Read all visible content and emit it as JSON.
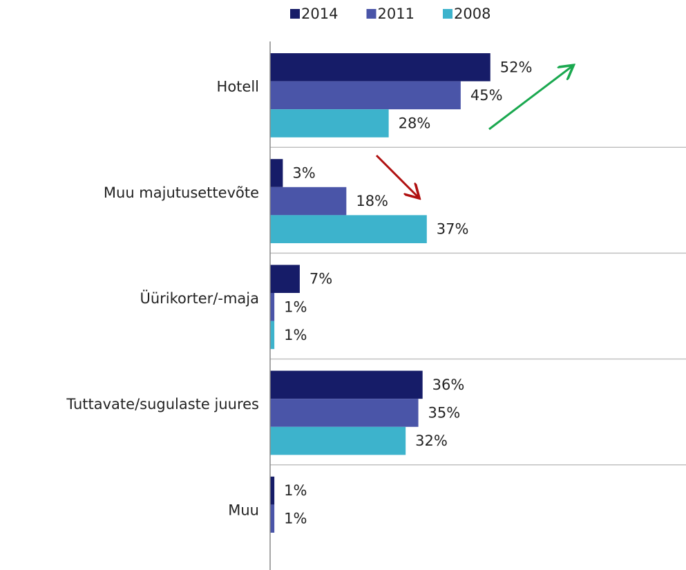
{
  "chart_data": {
    "type": "bar",
    "orientation": "horizontal",
    "categories": [
      "Hotell",
      "Muu majutusettevõte",
      "Üürikorter/-maja",
      "Tuttavate/sugulaste juures",
      "Muu"
    ],
    "series": [
      {
        "name": "2014",
        "color": "#161c68",
        "values": [
          52,
          3,
          7,
          36,
          1
        ],
        "value_labels": [
          "52%",
          "3%",
          "7%",
          "36%",
          "1%"
        ]
      },
      {
        "name": "2011",
        "color": "#4a55a8",
        "values": [
          45,
          18,
          1,
          35,
          1
        ],
        "value_labels": [
          "45%",
          "18%",
          "1%",
          "35%",
          "1%"
        ]
      },
      {
        "name": "2008",
        "color": "#3db3cc",
        "values": [
          28,
          37,
          1,
          32,
          null
        ],
        "value_labels": [
          "28%",
          "37%",
          "1%",
          "32%",
          null
        ]
      }
    ],
    "legend": "top"
  }
}
